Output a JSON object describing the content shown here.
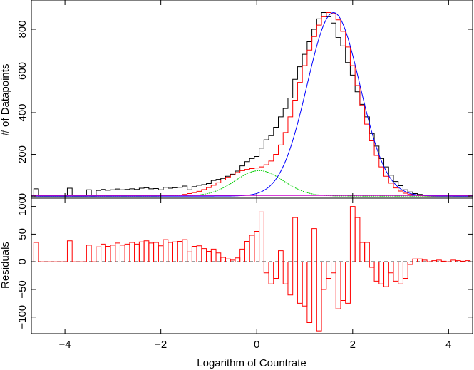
{
  "chart_data": [
    {
      "type": "histogram",
      "panel": "top",
      "title": "",
      "xlabel": "",
      "ylabel": "# of Datapoints",
      "xlim": [
        -4.7,
        4.5
      ],
      "ylim": [
        -10,
        940
      ],
      "x_ticks": [
        -4,
        -2,
        0,
        2,
        4
      ],
      "y_ticks": [
        0,
        200,
        400,
        600,
        800
      ],
      "y_tick_labels": [
        "0",
        "200",
        "400",
        "600",
        "800"
      ],
      "grid": false,
      "legend": "none",
      "bin_width": 0.1,
      "series": [
        {
          "style": "step",
          "color": "#000000",
          "x": [
            -4.6,
            -4.5,
            -4.4,
            -4.3,
            -4.2,
            -4.1,
            -4.0,
            -3.9,
            -3.8,
            -3.7,
            -3.6,
            -3.5,
            -3.4,
            -3.3,
            -3.2,
            -3.1,
            -3.0,
            -2.9,
            -2.8,
            -2.7,
            -2.6,
            -2.5,
            -2.4,
            -2.3,
            -2.2,
            -2.1,
            -2.0,
            -1.9,
            -1.8,
            -1.7,
            -1.6,
            -1.5,
            -1.4,
            -1.3,
            -1.2,
            -1.1,
            -1.0,
            -0.9,
            -0.8,
            -0.7,
            -0.6,
            -0.5,
            -0.4,
            -0.3,
            -0.2,
            -0.1,
            0.0,
            0.1,
            0.2,
            0.3,
            0.4,
            0.5,
            0.6,
            0.7,
            0.8,
            0.9,
            1.0,
            1.1,
            1.2,
            1.3,
            1.4,
            1.5,
            1.6,
            1.7,
            1.8,
            1.9,
            2.0,
            2.1,
            2.2,
            2.3,
            2.4,
            2.5,
            2.6,
            2.7,
            2.8,
            2.9,
            3.0,
            3.1,
            3.2,
            3.3,
            3.4,
            3.5,
            3.6,
            3.7,
            3.8,
            3.9,
            4.0,
            4.1,
            4.2,
            4.3,
            4.4
          ],
          "values": [
            35,
            0,
            0,
            0,
            0,
            0,
            0,
            38,
            0,
            0,
            0,
            30,
            0,
            27,
            32,
            28,
            30,
            34,
            30,
            32,
            35,
            32,
            38,
            40,
            35,
            36,
            30,
            42,
            38,
            40,
            42,
            48,
            30,
            45,
            52,
            55,
            60,
            75,
            80,
            85,
            95,
            105,
            120,
            145,
            165,
            180,
            190,
            230,
            270,
            290,
            330,
            380,
            420,
            470,
            560,
            620,
            680,
            740,
            800,
            850,
            880,
            860,
            830,
            760,
            720,
            640,
            580,
            500,
            440,
            380,
            300,
            240,
            180,
            140,
            100,
            70,
            50,
            30,
            20,
            12,
            8,
            4,
            2,
            0,
            0,
            0,
            0,
            0,
            0,
            0,
            0
          ]
        },
        {
          "style": "step",
          "color": "#ff0000",
          "x": [
            -4.6,
            -4.5,
            -4.4,
            -4.3,
            -4.2,
            -4.1,
            -4.0,
            -3.9,
            -3.8,
            -3.7,
            -3.6,
            -3.5,
            -3.4,
            -3.3,
            -3.2,
            -3.1,
            -3.0,
            -2.9,
            -2.8,
            -2.7,
            -2.6,
            -2.5,
            -2.4,
            -2.3,
            -2.2,
            -2.1,
            -2.0,
            -1.9,
            -1.8,
            -1.7,
            -1.6,
            -1.5,
            -1.4,
            -1.3,
            -1.2,
            -1.1,
            -1.0,
            -0.9,
            -0.8,
            -0.7,
            -0.6,
            -0.5,
            -0.4,
            -0.3,
            -0.2,
            -0.1,
            0.0,
            0.1,
            0.2,
            0.3,
            0.4,
            0.5,
            0.6,
            0.7,
            0.8,
            0.9,
            1.0,
            1.1,
            1.2,
            1.3,
            1.4,
            1.5,
            1.6,
            1.7,
            1.8,
            1.9,
            2.0,
            2.1,
            2.2,
            2.3,
            2.4,
            2.5,
            2.6,
            2.7,
            2.8,
            2.9,
            3.0,
            3.1,
            3.2,
            3.3,
            3.4,
            3.5,
            3.6,
            3.7,
            3.8,
            3.9,
            4.0,
            4.1,
            4.2,
            4.3,
            4.4
          ],
          "values": [
            0,
            0,
            0,
            0,
            0,
            0,
            0,
            0,
            0,
            0,
            0,
            0,
            0,
            0,
            0,
            0,
            0,
            0,
            0,
            0,
            0,
            0,
            0,
            0,
            0,
            0,
            1,
            1,
            2,
            3,
            5,
            8,
            12,
            17,
            23,
            31,
            41,
            52,
            64,
            77,
            90,
            102,
            113,
            122,
            128,
            132,
            135,
            140,
            150,
            168,
            200,
            245,
            305,
            380,
            460,
            545,
            625,
            700,
            765,
            820,
            860,
            880,
            875,
            845,
            790,
            715,
            625,
            530,
            435,
            345,
            265,
            195,
            140,
            95,
            62,
            39,
            24,
            14,
            8,
            4,
            2,
            1,
            0,
            0,
            0,
            0,
            0,
            0,
            0,
            0,
            0
          ]
        },
        {
          "style": "curve",
          "color": "#00cc00",
          "name": "",
          "peak_x": 0.05,
          "peak_y": 122,
          "sigma": 0.5
        },
        {
          "style": "curve",
          "color": "#0000ff",
          "name": "",
          "peak_x": 1.6,
          "peak_y": 880,
          "sigma": 0.55
        },
        {
          "style": "line",
          "color": "#cc00cc",
          "name": "",
          "x": [
            -4.7,
            4.5
          ],
          "values": [
            3,
            3
          ]
        }
      ]
    },
    {
      "type": "histogram",
      "panel": "bottom",
      "title": "",
      "xlabel": "Logarithm of Countrate",
      "ylabel": "Residuals",
      "xlim": [
        -4.7,
        4.5
      ],
      "ylim": [
        -130,
        115
      ],
      "x_ticks": [
        -4,
        -2,
        0,
        2,
        4
      ],
      "x_tick_labels": [
        "−4",
        "−2",
        "0",
        "2",
        "4"
      ],
      "y_ticks": [
        -100,
        -50,
        0,
        50,
        100
      ],
      "y_tick_labels": [
        "−100",
        "−50",
        "0",
        "50",
        "100"
      ],
      "zero_line": "dashed",
      "grid": false,
      "legend": "none",
      "series": [
        {
          "style": "step",
          "color": "#ff0000",
          "x": [
            -4.6,
            -4.5,
            -4.4,
            -4.3,
            -4.2,
            -4.1,
            -4.0,
            -3.9,
            -3.8,
            -3.7,
            -3.6,
            -3.5,
            -3.4,
            -3.3,
            -3.2,
            -3.1,
            -3.0,
            -2.9,
            -2.8,
            -2.7,
            -2.6,
            -2.5,
            -2.4,
            -2.3,
            -2.2,
            -2.1,
            -2.0,
            -1.9,
            -1.8,
            -1.7,
            -1.6,
            -1.5,
            -1.4,
            -1.3,
            -1.2,
            -1.1,
            -1.0,
            -0.9,
            -0.8,
            -0.7,
            -0.6,
            -0.5,
            -0.4,
            -0.3,
            -0.2,
            -0.1,
            0.0,
            0.1,
            0.2,
            0.3,
            0.4,
            0.5,
            0.6,
            0.7,
            0.8,
            0.9,
            1.0,
            1.1,
            1.2,
            1.3,
            1.4,
            1.5,
            1.6,
            1.7,
            1.8,
            1.9,
            2.0,
            2.1,
            2.2,
            2.3,
            2.4,
            2.5,
            2.6,
            2.7,
            2.8,
            2.9,
            3.0,
            3.1,
            3.2,
            3.3,
            3.4,
            3.5,
            3.6,
            3.7,
            3.8,
            3.9,
            4.0,
            4.1,
            4.2,
            4.3,
            4.4
          ],
          "values": [
            35,
            0,
            0,
            0,
            0,
            0,
            0,
            38,
            0,
            0,
            0,
            30,
            0,
            27,
            32,
            28,
            30,
            34,
            30,
            32,
            35,
            32,
            36,
            38,
            34,
            35,
            29,
            40,
            35,
            36,
            37,
            40,
            18,
            28,
            29,
            24,
            19,
            23,
            16,
            8,
            5,
            3,
            7,
            23,
            37,
            48,
            55,
            90,
            -20,
            -40,
            -30,
            20,
            -40,
            -60,
            80,
            -75,
            -80,
            -110,
            60,
            -125,
            -50,
            -30,
            -20,
            -85,
            -70,
            -75,
            100,
            80,
            35,
            35,
            -10,
            -35,
            -40,
            -45,
            -20,
            -35,
            -40,
            -30,
            -5,
            5,
            5,
            3,
            0,
            2,
            3,
            1,
            0,
            3,
            2,
            1,
            2
          ]
        }
      ]
    }
  ]
}
